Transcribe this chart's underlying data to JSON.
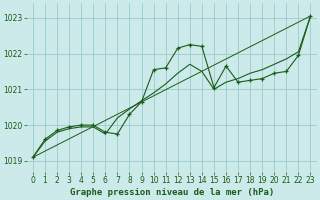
{
  "title": "Graphe pression niveau de la mer (hPa)",
  "background_color": "#cceaea",
  "grid_color": "#99cccc",
  "line_color": "#1a5c1a",
  "xlim": [
    -0.5,
    23.5
  ],
  "ylim": [
    1018.7,
    1023.4
  ],
  "yticks": [
    1019,
    1020,
    1021,
    1022,
    1023
  ],
  "xticks": [
    0,
    1,
    2,
    3,
    4,
    5,
    6,
    7,
    8,
    9,
    10,
    11,
    12,
    13,
    14,
    15,
    16,
    17,
    18,
    19,
    20,
    21,
    22,
    23
  ],
  "series1_x": [
    0,
    1,
    2,
    3,
    4,
    5,
    6,
    7,
    8,
    9,
    10,
    11,
    12,
    13,
    14,
    15,
    16,
    17,
    18,
    19,
    20,
    21,
    22,
    23
  ],
  "series1_y": [
    1019.1,
    1019.6,
    1019.85,
    1019.95,
    1020.0,
    1020.0,
    1019.8,
    1019.75,
    1020.3,
    1020.65,
    1021.55,
    1021.6,
    1022.15,
    1022.25,
    1022.2,
    1021.05,
    1021.65,
    1021.2,
    1021.25,
    1021.3,
    1021.45,
    1021.5,
    1021.95,
    1023.05
  ],
  "series2_x": [
    0,
    1,
    2,
    3,
    4,
    5,
    6,
    7,
    8,
    9,
    10,
    11,
    12,
    13,
    14,
    15,
    16,
    17,
    18,
    19,
    20,
    21,
    22,
    23
  ],
  "series2_y": [
    1019.1,
    1019.55,
    1019.8,
    1019.9,
    1019.95,
    1019.95,
    1019.75,
    1020.2,
    1020.45,
    1020.68,
    1020.9,
    1021.15,
    1021.45,
    1021.7,
    1021.5,
    1021.0,
    1021.2,
    1021.3,
    1021.45,
    1021.55,
    1021.7,
    1021.85,
    1022.05,
    1023.05
  ],
  "series3_x": [
    0,
    23
  ],
  "series3_y": [
    1019.1,
    1023.05
  ],
  "title_fontsize": 6.5,
  "tick_fontsize": 5.5
}
